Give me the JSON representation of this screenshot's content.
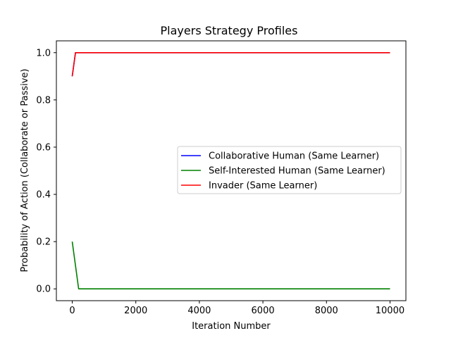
{
  "chart_data": {
    "type": "line",
    "title": "Players Strategy Profiles",
    "xlabel": "Iteration Number",
    "ylabel": "Probability of Action (Collaborate or Passive)",
    "xlim": [
      -500,
      10500
    ],
    "ylim": [
      -0.05,
      1.05
    ],
    "xticks": [
      0,
      2000,
      4000,
      6000,
      8000,
      10000
    ],
    "xtick_labels": [
      "0",
      "2000",
      "4000",
      "6000",
      "8000",
      "10000"
    ],
    "yticks": [
      0.0,
      0.2,
      0.4,
      0.6,
      0.8,
      1.0
    ],
    "ytick_labels": [
      "0.0",
      "0.2",
      "0.4",
      "0.6",
      "0.8",
      "1.0"
    ],
    "grid": false,
    "legend_position": "center-right",
    "series": [
      {
        "name": "Collaborative Human (Same Learner)",
        "color": "#0000ff",
        "x": [
          0,
          100,
          200,
          10000
        ],
        "y": [
          0.9,
          1.0,
          1.0,
          1.0
        ]
      },
      {
        "name": "Self-Interested Human (Same Learner)",
        "color": "#008000",
        "x": [
          0,
          200,
          10000
        ],
        "y": [
          0.2,
          0.0,
          0.0
        ]
      },
      {
        "name": "Invader (Same Learner)",
        "color": "#ff0000",
        "x": [
          0,
          100,
          200,
          10000
        ],
        "y": [
          0.9,
          1.0,
          1.0,
          1.0
        ]
      }
    ]
  }
}
